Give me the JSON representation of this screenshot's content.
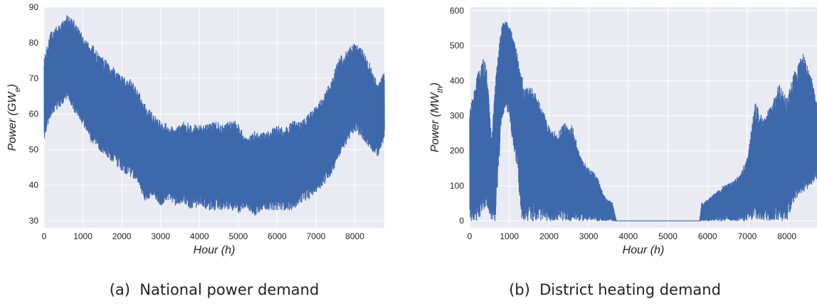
{
  "colors": {
    "plot_bg": "#eaeaf2",
    "grid": "#ffffff",
    "line": "#3e68ac"
  },
  "chart_data": [
    {
      "type": "line",
      "caption": "(a)  National power demand",
      "xlabel_main": "Hour ",
      "xlabel_unit": "(h)",
      "ylabel_main": "Power (GW",
      "ylabel_sub": "e",
      "ylabel_close": ")",
      "xlim": [
        0,
        8760
      ],
      "ylim": [
        28,
        90
      ],
      "xticks": [
        0,
        1000,
        2000,
        3000,
        4000,
        5000,
        6000,
        7000,
        8000
      ],
      "yticks": [
        30,
        40,
        50,
        60,
        70,
        80,
        90
      ],
      "grid": true,
      "series": [
        {
          "envelope_x": [
            0,
            200,
            400,
            600,
            800,
            1000,
            1200,
            1400,
            1600,
            1800,
            2000,
            2200,
            2400,
            2600,
            2800,
            3000,
            3200,
            3400,
            3600,
            3800,
            4000,
            4200,
            4400,
            4600,
            4800,
            5000,
            5200,
            5400,
            5600,
            5800,
            6000,
            6200,
            6400,
            6600,
            6800,
            7000,
            7200,
            7400,
            7600,
            7800,
            8000,
            8200,
            8400,
            8600,
            8760
          ],
          "envelope_high": [
            76,
            84,
            85,
            88,
            86,
            82,
            80,
            77,
            75,
            73,
            71,
            70,
            67,
            63,
            60,
            58,
            57,
            56,
            58,
            57,
            57,
            57,
            58,
            57,
            58,
            58,
            53,
            55,
            55,
            55,
            57,
            56,
            58,
            58,
            60,
            62,
            65,
            70,
            76,
            78,
            80,
            78,
            74,
            68,
            72
          ],
          "envelope_low": [
            53,
            60,
            62,
            64,
            60,
            57,
            52,
            50,
            48,
            46,
            44,
            42,
            41,
            35,
            37,
            34,
            36,
            34,
            35,
            33,
            34,
            33,
            33,
            33,
            33,
            32,
            34,
            31,
            33,
            33,
            33,
            33,
            33,
            35,
            36,
            38,
            40,
            43,
            48,
            52,
            55,
            53,
            50,
            48,
            53
          ]
        }
      ]
    },
    {
      "type": "line",
      "caption": "(b)  District heating demand",
      "xlabel_main": "Hour ",
      "xlabel_unit": "(h)",
      "ylabel_main": "Power (MW",
      "ylabel_sub": "th",
      "ylabel_close": ")",
      "xlim": [
        0,
        8760
      ],
      "ylim": [
        -20,
        610
      ],
      "xticks": [
        0,
        1000,
        2000,
        3000,
        4000,
        5000,
        6000,
        7000,
        8000
      ],
      "yticks": [
        0,
        100,
        200,
        300,
        400,
        500,
        600
      ],
      "grid": true,
      "series": [
        {
          "envelope_x": [
            0,
            200,
            400,
            550,
            650,
            800,
            900,
            1000,
            1100,
            1200,
            1300,
            1400,
            1600,
            1800,
            2000,
            2200,
            2400,
            2600,
            2800,
            3000,
            3200,
            3400,
            3600,
            3700,
            5800,
            5850,
            6000,
            6200,
            6400,
            6600,
            6800,
            7000,
            7200,
            7400,
            7600,
            7800,
            8000,
            8200,
            8400,
            8600,
            8760
          ],
          "envelope_high": [
            330,
            420,
            480,
            250,
            400,
            560,
            575,
            560,
            520,
            490,
            420,
            380,
            380,
            330,
            270,
            250,
            280,
            270,
            180,
            150,
            130,
            70,
            50,
            0,
            0,
            50,
            60,
            80,
            100,
            110,
            130,
            180,
            340,
            290,
            330,
            390,
            350,
            430,
            480,
            420,
            350
          ],
          "envelope_low": [
            0,
            0,
            40,
            0,
            0,
            290,
            320,
            300,
            200,
            150,
            0,
            0,
            0,
            0,
            0,
            0,
            0,
            0,
            0,
            0,
            0,
            0,
            0,
            0,
            0,
            0,
            0,
            0,
            0,
            0,
            0,
            0,
            0,
            0,
            0,
            0,
            0,
            60,
            80,
            100,
            120
          ]
        }
      ]
    }
  ]
}
